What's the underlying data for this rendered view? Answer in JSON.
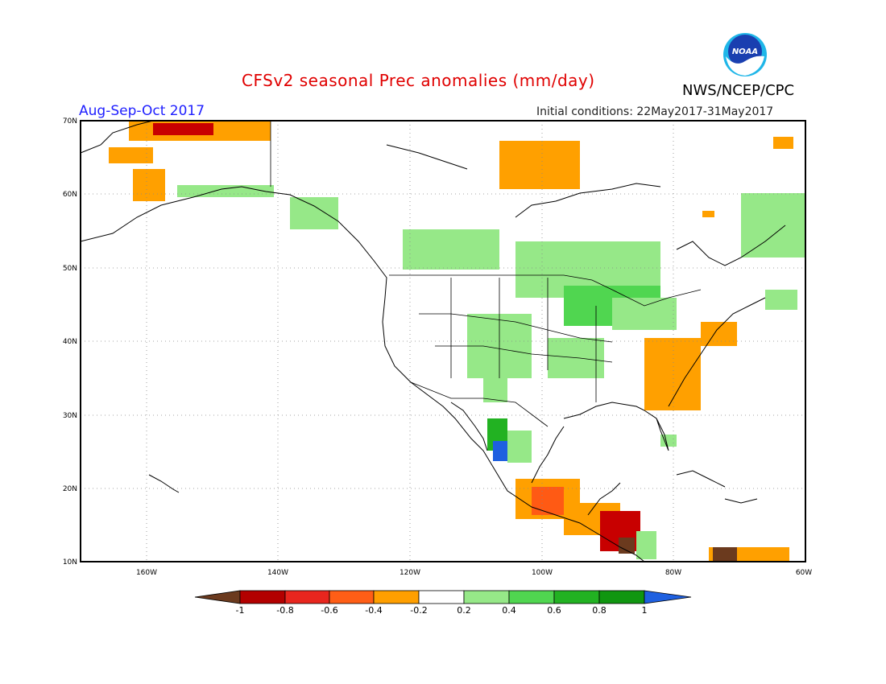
{
  "header": {
    "title": "CFSv2 seasonal Prec anomalies (mm/day)",
    "period": "Aug-Sep-Oct 2017",
    "initial_conditions": "Initial conditions: 22May2017-31May2017",
    "agency": "NWS/NCEP/CPC",
    "logo_text": "NOAA"
  },
  "map": {
    "lat_labels": [
      "70N",
      "60N",
      "50N",
      "40N",
      "30N",
      "20N",
      "10N"
    ],
    "lon_labels": [
      "160W",
      "140W",
      "120W",
      "100W",
      "80W",
      "60W"
    ],
    "grid": "dotted"
  },
  "colorbar": {
    "labels": [
      "-1",
      "-0.8",
      "-0.6",
      "-0.4",
      "-0.2",
      "0.2",
      "0.4",
      "0.6",
      "0.8",
      "1"
    ],
    "colors": [
      "#6b3a1e",
      "#b30000",
      "#e8261e",
      "#ff5e16",
      "#ff9f00",
      "#ffffff",
      "#96e888",
      "#50d650",
      "#22b222",
      "#109610",
      "#1e60e0"
    ]
  },
  "anomaly_colors": {
    "orange": "#ffa000",
    "red": "#ff5a14",
    "darkred": "#c80000",
    "brown": "#6b3a1e",
    "lightgreen": "#96e888",
    "green": "#50d650",
    "darkgreen": "#22b222",
    "blue": "#1e60e0"
  }
}
